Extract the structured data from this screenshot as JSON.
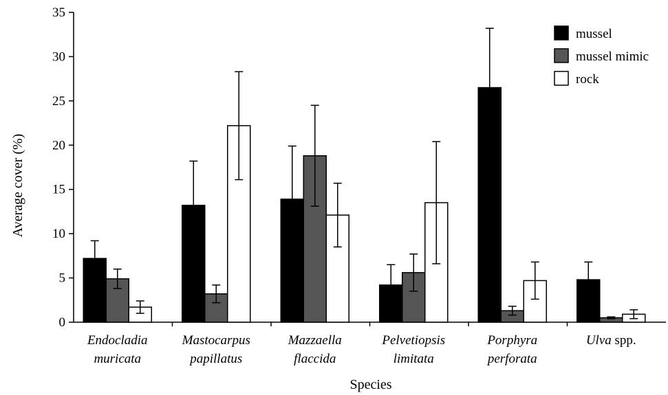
{
  "chart_data": {
    "type": "bar",
    "xlabel": "Species",
    "ylabel": "Average cover (%)",
    "ylim": [
      0,
      35
    ],
    "yticks": [
      0,
      5,
      10,
      15,
      20,
      25,
      30,
      35
    ],
    "grid": false,
    "legend_position": "top-right",
    "categories": [
      {
        "parts": [
          {
            "text": "Endocladia",
            "italic": true
          }
        ],
        "line2": [
          {
            "text": "muricata",
            "italic": true
          }
        ]
      },
      {
        "parts": [
          {
            "text": "Mastocarpus",
            "italic": true
          }
        ],
        "line2": [
          {
            "text": "papillatus",
            "italic": true
          }
        ]
      },
      {
        "parts": [
          {
            "text": "Mazzaella",
            "italic": true
          }
        ],
        "line2": [
          {
            "text": "flaccida",
            "italic": true
          }
        ]
      },
      {
        "parts": [
          {
            "text": "Pelvetiopsis",
            "italic": true
          }
        ],
        "line2": [
          {
            "text": "limitata",
            "italic": true
          }
        ]
      },
      {
        "parts": [
          {
            "text": "Porphyra",
            "italic": true
          }
        ],
        "line2": [
          {
            "text": "perforata",
            "italic": true
          }
        ]
      },
      {
        "parts": [
          {
            "text": "Ulva",
            "italic": true
          },
          {
            "text": " spp.",
            "italic": false
          }
        ],
        "line2": []
      }
    ],
    "series": [
      {
        "name": "mussel",
        "color": "#000000",
        "values": [
          7.2,
          13.2,
          13.9,
          4.2,
          26.5,
          4.8
        ],
        "errors": [
          2.0,
          5.0,
          6.0,
          2.3,
          6.7,
          2.0
        ]
      },
      {
        "name": "mussel mimic",
        "color": "#555555",
        "values": [
          4.9,
          3.2,
          18.8,
          5.6,
          1.3,
          0.5
        ],
        "errors": [
          1.1,
          1.0,
          5.7,
          2.1,
          0.5,
          0.1
        ]
      },
      {
        "name": "rock",
        "color": "#ffffff",
        "values": [
          1.7,
          22.2,
          12.1,
          13.5,
          4.7,
          0.9
        ],
        "errors": [
          0.7,
          6.1,
          3.6,
          6.9,
          2.1,
          0.5
        ]
      }
    ]
  }
}
